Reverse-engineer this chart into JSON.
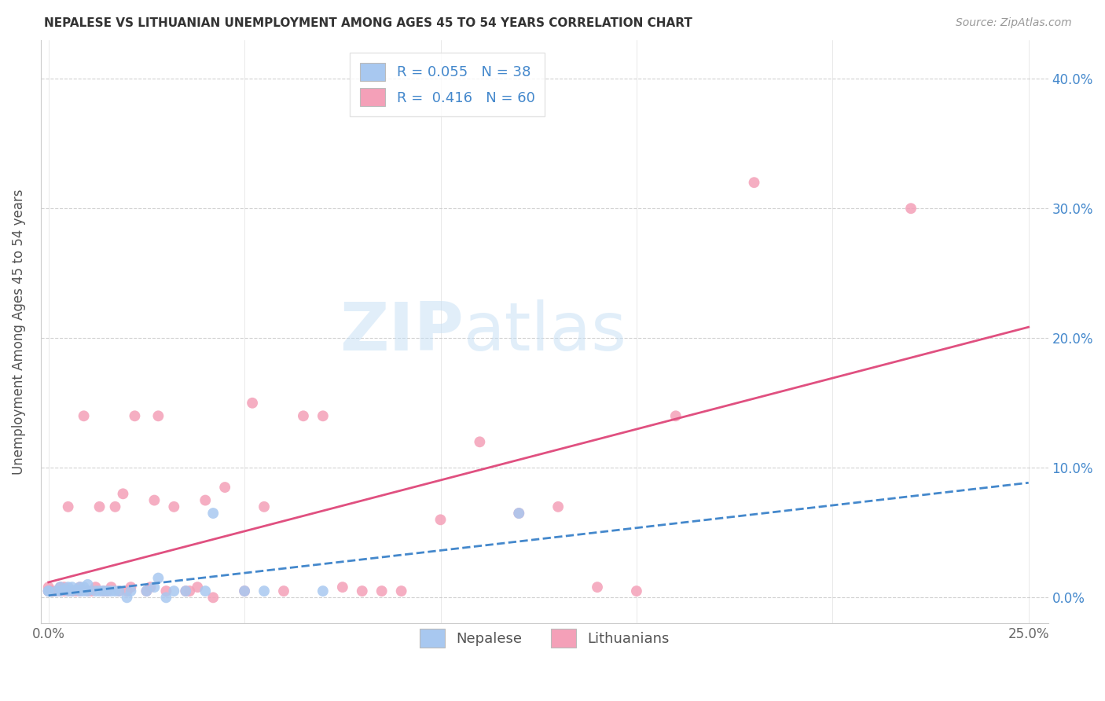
{
  "title": "NEPALESE VS LITHUANIAN UNEMPLOYMENT AMONG AGES 45 TO 54 YEARS CORRELATION CHART",
  "source": "Source: ZipAtlas.com",
  "ylabel": "Unemployment Among Ages 45 to 54 years",
  "xlim": [
    -0.002,
    0.255
  ],
  "ylim": [
    -0.02,
    0.43
  ],
  "xticks": [
    0.0,
    0.05,
    0.1,
    0.15,
    0.2,
    0.25
  ],
  "xtick_labels": [
    "0.0%",
    "",
    "",
    "",
    "",
    "25.0%"
  ],
  "yticks": [
    0.0,
    0.1,
    0.2,
    0.3,
    0.4
  ],
  "ytick_labels": [
    "",
    "",
    "",
    "",
    ""
  ],
  "right_ytick_labels": [
    "0.0%",
    "10.0%",
    "20.0%",
    "30.0%",
    "40.0%"
  ],
  "legend_nepalese_R": "0.055",
  "legend_nepalese_N": "38",
  "legend_lithuanian_R": "0.416",
  "legend_lithuanian_N": "60",
  "nepalese_color": "#A8C8F0",
  "lithuanian_color": "#F4A0B8",
  "nepalese_line_color": "#4488CC",
  "lithuanian_line_color": "#E05080",
  "nepalese_x": [
    0.0,
    0.0,
    0.002,
    0.003,
    0.003,
    0.004,
    0.005,
    0.005,
    0.006,
    0.006,
    0.007,
    0.008,
    0.008,
    0.009,
    0.009,
    0.01,
    0.01,
    0.012,
    0.013,
    0.014,
    0.015,
    0.016,
    0.017,
    0.018,
    0.02,
    0.021,
    0.025,
    0.027,
    0.028,
    0.03,
    0.032,
    0.035,
    0.04,
    0.042,
    0.05,
    0.055,
    0.07,
    0.12
  ],
  "nepalese_y": [
    0.005,
    0.005,
    0.005,
    0.005,
    0.008,
    0.006,
    0.005,
    0.008,
    0.005,
    0.008,
    0.006,
    0.005,
    0.008,
    0.005,
    0.008,
    0.005,
    0.01,
    0.005,
    0.005,
    0.005,
    0.005,
    0.005,
    0.005,
    0.005,
    0.0,
    0.005,
    0.005,
    0.008,
    0.015,
    0.0,
    0.005,
    0.005,
    0.005,
    0.065,
    0.005,
    0.005,
    0.005,
    0.065
  ],
  "lithuanian_x": [
    0.0,
    0.0,
    0.0,
    0.001,
    0.002,
    0.003,
    0.003,
    0.004,
    0.004,
    0.005,
    0.005,
    0.006,
    0.007,
    0.008,
    0.008,
    0.009,
    0.01,
    0.011,
    0.012,
    0.013,
    0.014,
    0.015,
    0.016,
    0.017,
    0.018,
    0.019,
    0.02,
    0.021,
    0.022,
    0.025,
    0.026,
    0.027,
    0.028,
    0.03,
    0.032,
    0.035,
    0.036,
    0.038,
    0.04,
    0.042,
    0.045,
    0.05,
    0.052,
    0.055,
    0.06,
    0.065,
    0.07,
    0.075,
    0.08,
    0.085,
    0.09,
    0.1,
    0.11,
    0.12,
    0.13,
    0.14,
    0.15,
    0.16,
    0.18,
    0.22
  ],
  "lithuanian_y": [
    0.005,
    0.005,
    0.008,
    0.005,
    0.005,
    0.005,
    0.008,
    0.005,
    0.008,
    0.005,
    0.07,
    0.005,
    0.005,
    0.005,
    0.008,
    0.14,
    0.005,
    0.005,
    0.008,
    0.07,
    0.005,
    0.005,
    0.008,
    0.07,
    0.005,
    0.08,
    0.005,
    0.008,
    0.14,
    0.005,
    0.008,
    0.075,
    0.14,
    0.005,
    0.07,
    0.005,
    0.005,
    0.008,
    0.075,
    0.0,
    0.085,
    0.005,
    0.15,
    0.07,
    0.005,
    0.14,
    0.14,
    0.008,
    0.005,
    0.005,
    0.005,
    0.06,
    0.12,
    0.065,
    0.07,
    0.008,
    0.005,
    0.14,
    0.32,
    0.3
  ]
}
